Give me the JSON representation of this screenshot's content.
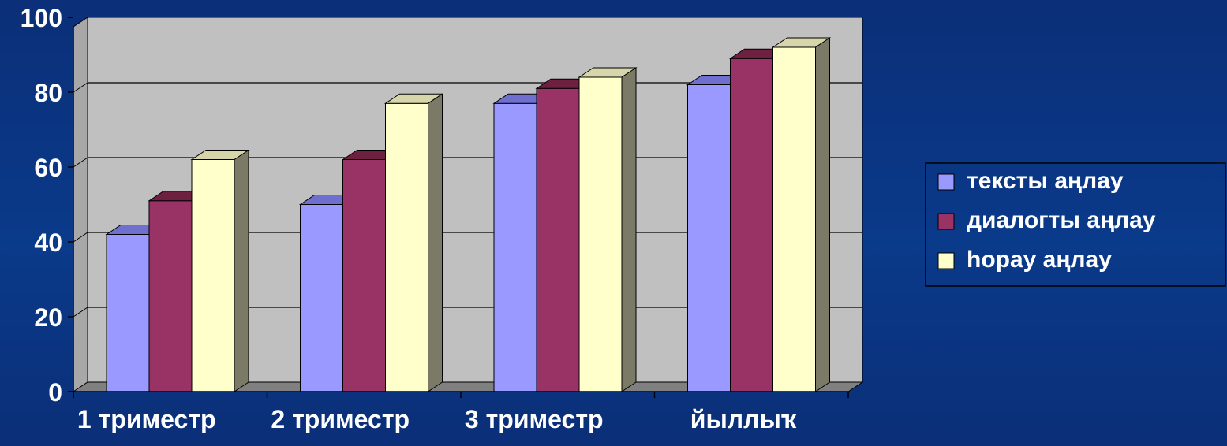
{
  "chart_data": {
    "type": "bar",
    "title": "",
    "xlabel": "",
    "ylabel": "",
    "categories": [
      "1 триместр",
      "2 триместр",
      "3 триместр",
      "йыллыҡ"
    ],
    "series": [
      {
        "name": "тексты аңлау",
        "values": [
          42,
          50,
          77,
          82
        ],
        "color": "#9999ff",
        "top_color": "#6f6fd0",
        "side_color": "#6666bb"
      },
      {
        "name": "диалогты аңлау",
        "values": [
          51,
          62,
          81,
          89
        ],
        "color": "#993366",
        "top_color": "#6e2040",
        "side_color": "#662244"
      },
      {
        "name": "һорау аңлау",
        "values": [
          62,
          77,
          84,
          92
        ],
        "color": "#ffffcc",
        "top_color": "#d6d6aa",
        "side_color": "#7a7a66"
      }
    ],
    "y_ticks": [
      "0",
      "20",
      "40",
      "60",
      "80",
      "100"
    ],
    "ylim": [
      0,
      100
    ],
    "grid": true,
    "legend_position": "right",
    "three_d": true,
    "plot_wall_color": "#c0c0c0",
    "floor_color": "#808080",
    "axis_text_color": "#ffffff",
    "legend_text_color": "#ffffff"
  }
}
